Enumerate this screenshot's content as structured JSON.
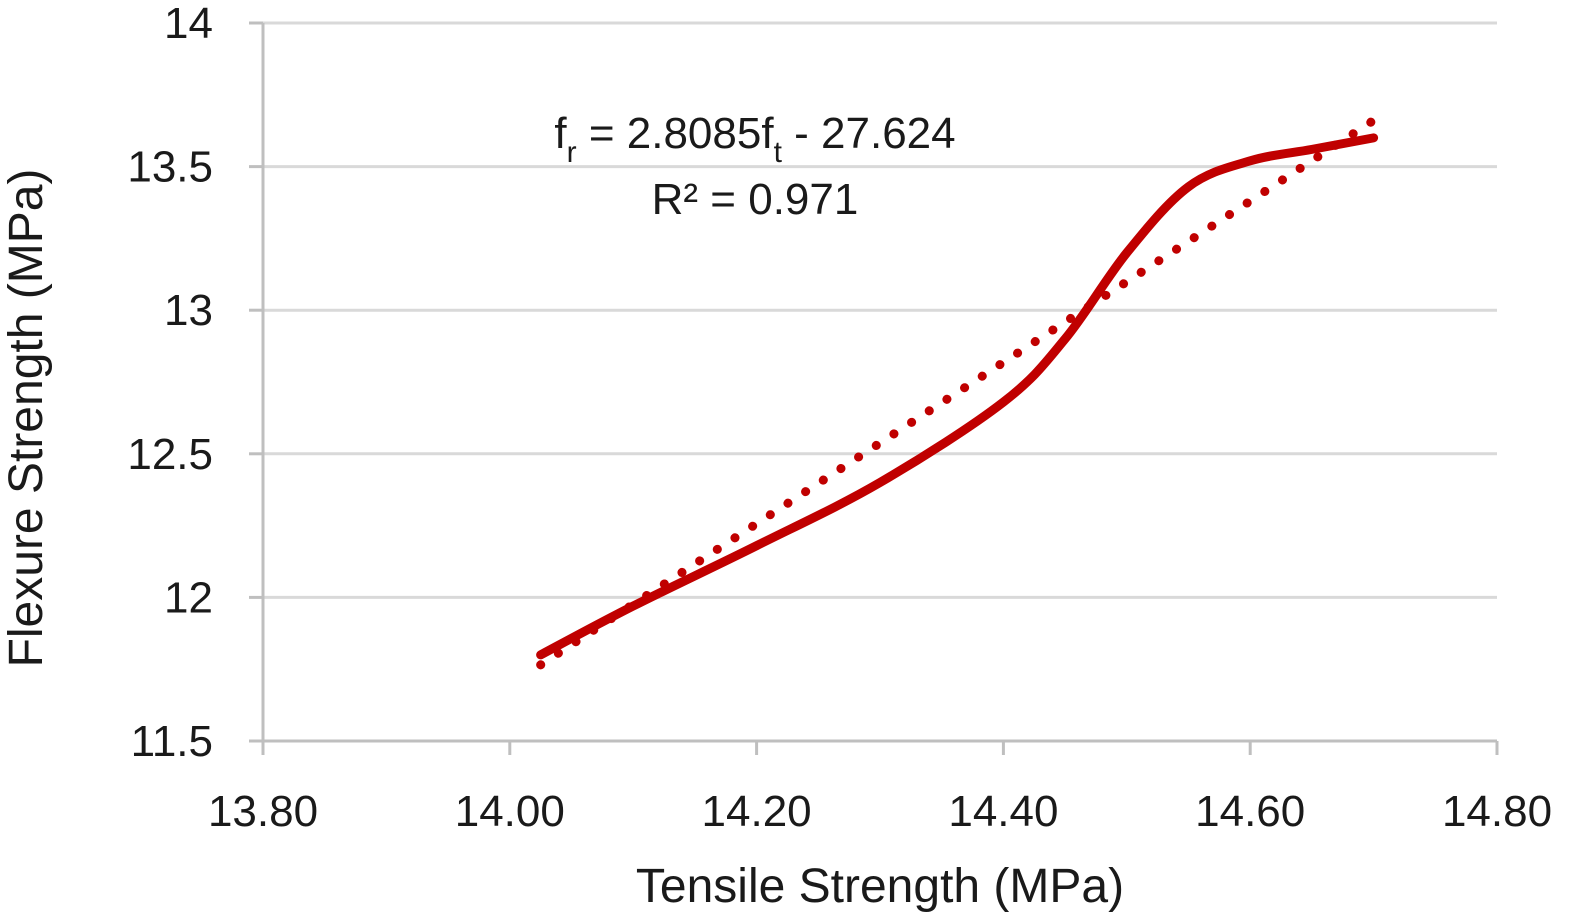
{
  "chart_data": {
    "type": "line",
    "title": "",
    "xlabel": "Tensile Strength (MPa)",
    "ylabel": "Flexure Strength (MPa)",
    "xlim": [
      13.8,
      14.8
    ],
    "ylim": [
      11.5,
      14.0
    ],
    "x_ticks": [
      13.8,
      14.0,
      14.2,
      14.4,
      14.6,
      14.8
    ],
    "x_tick_labels": [
      "13.80",
      "14.00",
      "14.20",
      "14.40",
      "14.60",
      "14.80"
    ],
    "y_ticks": [
      11.5,
      12.0,
      12.5,
      13.0,
      13.5,
      14.0
    ],
    "y_tick_labels": [
      "11.5",
      "12",
      "12.5",
      "13",
      "13.5",
      "14"
    ],
    "grid": "horizontal",
    "legend": "none",
    "colors": {
      "series": "#c00000",
      "grid": "#d9d9d9",
      "axis": "#bfbfbf",
      "text": "#1a1a1a"
    },
    "series": [
      {
        "style": "solid",
        "x": [
          14.025,
          14.1,
          14.2,
          14.3,
          14.4,
          14.45,
          14.5,
          14.55,
          14.6,
          14.65,
          14.7
        ],
        "y": [
          11.8,
          11.97,
          12.18,
          12.4,
          12.68,
          12.9,
          13.2,
          13.43,
          13.52,
          13.56,
          13.6
        ]
      },
      {
        "style": "dotted",
        "trendline": {
          "slope": 2.8085,
          "intercept": -27.624
        },
        "x_range": [
          14.025,
          14.7
        ]
      }
    ],
    "annotations": {
      "eq_f": "f",
      "eq_sub1": "r",
      "eq_mid": " = 2.8085f",
      "eq_sub2": "t",
      "eq_tail": " - 27.624",
      "r2": "R² = 0.971"
    }
  }
}
